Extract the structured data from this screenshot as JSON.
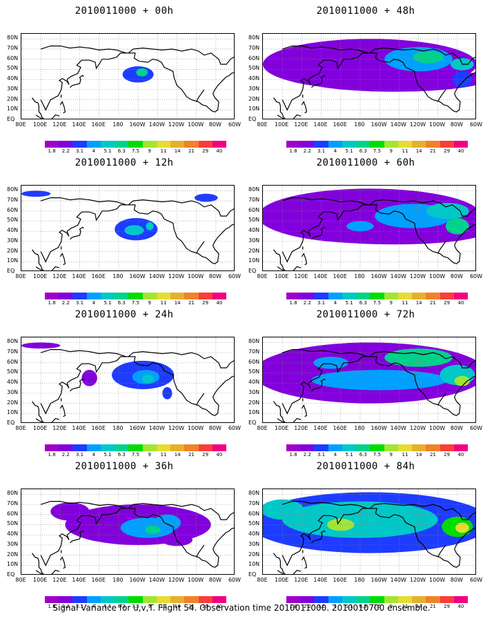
{
  "caption": "Signal Variance for u,v,T. Flight 54. Observation time 2010011000. 2010010700 ensemble.",
  "lat_labels": [
    "80N",
    "70N",
    "60N",
    "50N",
    "40N",
    "30N",
    "20N",
    "10N",
    "EQ"
  ],
  "lon_labels": [
    "80E",
    "100E",
    "120E",
    "140E",
    "160E",
    "180",
    "160W",
    "140W",
    "120W",
    "100W",
    "80W",
    "60W"
  ],
  "colorbar": {
    "levels": [
      "1.8",
      "2.2",
      "3.1",
      "4",
      "5.1",
      "6.3",
      "7.5",
      "9",
      "11",
      "14",
      "21",
      "29",
      "40"
    ],
    "colors": [
      "#a000c8",
      "#8200dc",
      "#1e3cff",
      "#00a0ff",
      "#00c8c8",
      "#00d28c",
      "#00dc00",
      "#a0e632",
      "#e6dc32",
      "#e6af2d",
      "#f08228",
      "#fa3c3c",
      "#f00082"
    ]
  },
  "chart_data": [
    {
      "type": "heatmap",
      "title": "2010011000 + 00h",
      "lead_hours": 0,
      "blobs": [
        {
          "lon": 200,
          "lat": 45,
          "rlon": 16,
          "rlat": 8,
          "level": 2
        },
        {
          "lon": 204,
          "lat": 47,
          "rlon": 6,
          "rlat": 4,
          "level": 5
        }
      ]
    },
    {
      "type": "heatmap",
      "title": "2010011000 + 12h",
      "lead_hours": 12,
      "blobs": [
        {
          "lon": 198,
          "lat": 42,
          "rlon": 22,
          "rlat": 11,
          "level": 2
        },
        {
          "lon": 196,
          "lat": 41,
          "rlon": 10,
          "rlat": 5,
          "level": 4
        },
        {
          "lon": 212,
          "lat": 45,
          "rlon": 4,
          "rlat": 4,
          "level": 4
        },
        {
          "lon": 95,
          "lat": 77,
          "rlon": 15,
          "rlat": 3,
          "level": 2
        },
        {
          "lon": 270,
          "lat": 73,
          "rlon": 12,
          "rlat": 4,
          "level": 2
        }
      ]
    },
    {
      "type": "heatmap",
      "title": "2010011000 + 24h",
      "lead_hours": 24,
      "blobs": [
        {
          "lon": 205,
          "lat": 48,
          "rlon": 32,
          "rlat": 14,
          "level": 2
        },
        {
          "lon": 208,
          "lat": 46,
          "rlon": 14,
          "rlat": 7,
          "level": 3
        },
        {
          "lon": 210,
          "lat": 44,
          "rlon": 6,
          "rlat": 4,
          "level": 4
        },
        {
          "lon": 150,
          "lat": 45,
          "rlon": 8,
          "rlat": 8,
          "level": 1
        },
        {
          "lon": 230,
          "lat": 30,
          "rlon": 5,
          "rlat": 6,
          "level": 2
        },
        {
          "lon": 100,
          "lat": 77,
          "rlon": 20,
          "rlat": 3,
          "level": 1
        }
      ]
    },
    {
      "type": "heatmap",
      "title": "2010011000 + 36h",
      "lead_hours": 36,
      "blobs": [
        {
          "lon": 200,
          "lat": 50,
          "rlon": 75,
          "rlat": 20,
          "level": 1
        },
        {
          "lon": 130,
          "lat": 63,
          "rlon": 20,
          "rlat": 9,
          "level": 1
        },
        {
          "lon": 210,
          "lat": 47,
          "rlon": 28,
          "rlat": 10,
          "level": 3
        },
        {
          "lon": 230,
          "lat": 52,
          "rlon": 14,
          "rlat": 8,
          "level": 3
        },
        {
          "lon": 215,
          "lat": 45,
          "rlon": 8,
          "rlat": 4,
          "level": 5
        },
        {
          "lon": 240,
          "lat": 35,
          "rlon": 16,
          "rlat": 6,
          "level": 1
        }
      ]
    },
    {
      "type": "heatmap",
      "title": "2010011000 + 48h",
      "lead_hours": 48,
      "blobs": [
        {
          "lon": 190,
          "lat": 55,
          "rlon": 110,
          "rlat": 25,
          "level": 1
        },
        {
          "lon": 215,
          "lat": 40,
          "rlon": 95,
          "rlat": 12,
          "level": 1
        },
        {
          "lon": 240,
          "lat": 60,
          "rlon": 35,
          "rlat": 12,
          "level": 3
        },
        {
          "lon": 250,
          "lat": 62,
          "rlon": 16,
          "rlat": 6,
          "level": 5
        },
        {
          "lon": 285,
          "lat": 55,
          "rlon": 12,
          "rlat": 6,
          "level": 4
        },
        {
          "lon": 285,
          "lat": 40,
          "rlon": 10,
          "rlat": 8,
          "level": 2
        }
      ]
    },
    {
      "type": "heatmap",
      "title": "2010011000 + 60h",
      "lead_hours": 60,
      "blobs": [
        {
          "lon": 190,
          "lat": 55,
          "rlon": 115,
          "rlat": 27,
          "level": 1
        },
        {
          "lon": 215,
          "lat": 40,
          "rlon": 95,
          "rlat": 13,
          "level": 1
        },
        {
          "lon": 235,
          "lat": 55,
          "rlon": 40,
          "rlat": 12,
          "level": 3
        },
        {
          "lon": 270,
          "lat": 60,
          "rlon": 22,
          "rlat": 8,
          "level": 4
        },
        {
          "lon": 280,
          "lat": 45,
          "rlon": 12,
          "rlat": 8,
          "level": 5
        },
        {
          "lon": 180,
          "lat": 45,
          "rlon": 14,
          "rlat": 5,
          "level": 3
        }
      ]
    },
    {
      "type": "heatmap",
      "title": "2010011000 + 72h",
      "lead_hours": 72,
      "blobs": [
        {
          "lon": 190,
          "lat": 50,
          "rlon": 120,
          "rlat": 30,
          "level": 1
        },
        {
          "lon": 200,
          "lat": 43,
          "rlon": 70,
          "rlat": 10,
          "level": 3
        },
        {
          "lon": 240,
          "lat": 65,
          "rlon": 35,
          "rlat": 9,
          "level": 5
        },
        {
          "lon": 280,
          "lat": 48,
          "rlon": 18,
          "rlat": 10,
          "level": 4
        },
        {
          "lon": 285,
          "lat": 42,
          "rlon": 8,
          "rlat": 5,
          "level": 7
        },
        {
          "lon": 150,
          "lat": 60,
          "rlon": 18,
          "rlat": 6,
          "level": 3
        }
      ]
    },
    {
      "type": "heatmap",
      "title": "2010011000 + 84h",
      "lead_hours": 84,
      "blobs": [
        {
          "lon": 190,
          "lat": 52,
          "rlon": 125,
          "rlat": 30,
          "level": 2
        },
        {
          "lon": 180,
          "lat": 55,
          "rlon": 80,
          "rlat": 18,
          "level": 4
        },
        {
          "lon": 160,
          "lat": 50,
          "rlon": 14,
          "rlat": 6,
          "level": 7
        },
        {
          "lon": 280,
          "lat": 48,
          "rlon": 16,
          "rlat": 10,
          "level": 6
        },
        {
          "lon": 285,
          "lat": 47,
          "rlon": 7,
          "rlat": 5,
          "level": 8
        },
        {
          "lon": 100,
          "lat": 65,
          "rlon": 22,
          "rlat": 10,
          "level": 4
        }
      ]
    }
  ]
}
